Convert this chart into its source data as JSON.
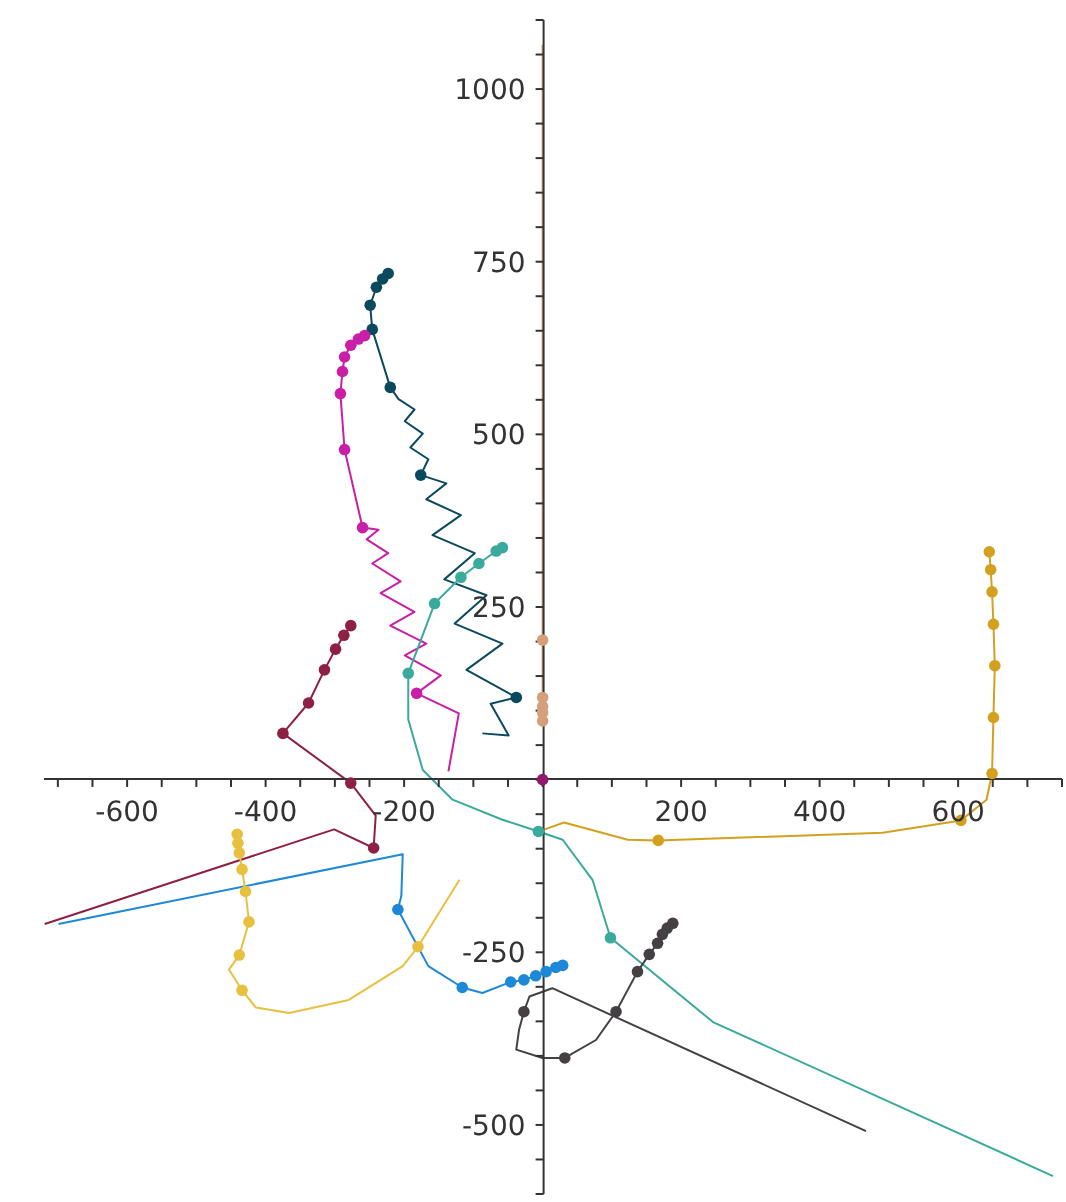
{
  "chart_data": {
    "type": "line",
    "xlim": [
      -720,
      750
    ],
    "ylim": [
      -600,
      1100
    ],
    "xticks": [
      {
        "value": -700,
        "label": null
      },
      {
        "value": -650,
        "label": null
      },
      -600,
      {
        "value": -550,
        "label": null
      },
      {
        "value": -500,
        "label": null
      },
      {
        "value": -450,
        "label": null
      },
      -400,
      {
        "value": -350,
        "label": null
      },
      {
        "value": -300,
        "label": null
      },
      {
        "value": -250,
        "label": null
      },
      -200,
      {
        "value": -150,
        "label": null
      },
      {
        "value": -100,
        "label": null
      },
      {
        "value": -50,
        "label": null
      },
      {
        "value": 0,
        "label": null
      },
      {
        "value": 50,
        "label": null
      },
      {
        "value": 100,
        "label": null
      },
      {
        "value": 150,
        "label": null
      },
      200,
      {
        "value": 250,
        "label": null
      },
      {
        "value": 300,
        "label": null
      },
      {
        "value": 350,
        "label": null
      },
      400,
      {
        "value": 450,
        "label": null
      },
      {
        "value": 500,
        "label": null
      },
      {
        "value": 550,
        "label": null
      },
      600,
      {
        "value": 650,
        "label": null
      },
      {
        "value": 700,
        "label": null
      },
      {
        "value": 750,
        "label": null
      }
    ],
    "yticks": [
      {
        "value": -600,
        "label": null
      },
      {
        "value": -550,
        "label": null
      },
      -500,
      {
        "value": -450,
        "label": null
      },
      {
        "value": -400,
        "label": null
      },
      {
        "value": -350,
        "label": null
      },
      {
        "value": -300,
        "label": null
      },
      -250,
      {
        "value": -200,
        "label": null
      },
      {
        "value": -150,
        "label": null
      },
      {
        "value": -100,
        "label": null
      },
      {
        "value": -50,
        "label": null
      },
      {
        "value": 0,
        "label": null
      },
      {
        "value": 50,
        "label": null
      },
      {
        "value": 100,
        "label": null
      },
      {
        "value": 150,
        "label": null
      },
      {
        "value": 200,
        "label": null
      },
      250,
      {
        "value": 300,
        "label": null
      },
      {
        "value": 350,
        "label": null
      },
      {
        "value": 400,
        "label": null
      },
      {
        "value": 450,
        "label": null
      },
      500,
      {
        "value": 550,
        "label": null
      },
      {
        "value": 600,
        "label": null
      },
      {
        "value": 650,
        "label": null
      },
      {
        "value": 700,
        "label": null
      },
      750,
      {
        "value": 800,
        "label": null
      },
      {
        "value": 850,
        "label": null
      },
      {
        "value": 900,
        "label": null
      },
      {
        "value": 950,
        "label": null
      },
      1000,
      {
        "value": 1050,
        "label": null
      },
      {
        "value": 1100,
        "label": null
      }
    ],
    "grid": false,
    "series": [
      {
        "type": "line",
        "color": "#0b4a5e",
        "x": [
          -87,
          -49,
          -75,
          -38,
          -110,
          -58,
          -127,
          -81,
          -142,
          -98,
          -159,
          -118,
          -168,
          -139,
          -176,
          -165,
          -191,
          -173,
          -199,
          -185,
          -208,
          -220,
          -246,
          -249,
          -240,
          -231,
          -223
        ],
        "values": [
          67,
          64,
          110,
          119,
          159,
          197,
          226,
          267,
          290,
          328,
          354,
          383,
          406,
          429,
          441,
          464,
          481,
          501,
          519,
          536,
          551,
          568,
          652,
          687,
          713,
          725,
          733
        ]
      },
      {
        "type": "scatter",
        "marker": "circle",
        "color": "#0b4a5e",
        "x": [
          -38,
          -176,
          -220,
          -246,
          -249,
          -240,
          -231,
          -223
        ],
        "values": [
          119,
          441,
          568,
          652,
          687,
          713,
          725,
          733
        ]
      },
      {
        "type": "line",
        "color": "#c81ea8",
        "x": [
          -136,
          -121,
          -182,
          -147,
          -199,
          -168,
          -220,
          -185,
          -234,
          -205,
          -246,
          -223,
          -254,
          -237,
          -260,
          -286,
          -292,
          -289,
          -286,
          -277,
          -266,
          -257
        ],
        "values": [
          12,
          96,
          125,
          151,
          180,
          197,
          223,
          243,
          270,
          287,
          313,
          328,
          348,
          362,
          365,
          478,
          559,
          591,
          612,
          629,
          638,
          643
        ]
      },
      {
        "type": "scatter",
        "marker": "circle",
        "color": "#c81ea8",
        "x": [
          -182,
          -260,
          -286,
          -292,
          -289,
          -286,
          -277,
          -266,
          -257
        ],
        "values": [
          125,
          365,
          478,
          559,
          591,
          612,
          629,
          638,
          643
        ]
      },
      {
        "type": "line",
        "color": "#3aaa9c",
        "x": [
          -58,
          -67,
          -92,
          -118,
          -156,
          -194,
          -194,
          -173,
          -130,
          -58,
          -6,
          29,
          72,
          98,
          246,
          737
        ],
        "values": [
          336,
          331,
          313,
          293,
          255,
          154,
          87,
          14,
          -29,
          -58,
          -75,
          -87,
          -145,
          -229,
          -351,
          -574
        ]
      },
      {
        "type": "scatter",
        "marker": "circle",
        "color": "#3aaa9c",
        "x": [
          -58,
          -67,
          -92,
          -118,
          -156,
          -194,
          -6,
          98
        ],
        "values": [
          336,
          331,
          313,
          293,
          255,
          154,
          -75,
          -229
        ]
      },
      {
        "type": "line",
        "color": "#8e2044",
        "x": [
          -277,
          -287,
          -299,
          -315,
          -338,
          -375,
          -277,
          -241,
          -244,
          -301,
          -719
        ],
        "values": [
          223,
          209,
          189,
          159,
          111,
          67,
          -5,
          -52,
          -99,
          -72,
          -209
        ]
      },
      {
        "type": "scatter",
        "marker": "circle",
        "color": "#8e2044",
        "x": [
          -277,
          -287,
          -299,
          -315,
          -338,
          -375,
          -277,
          -244
        ],
        "values": [
          223,
          209,
          189,
          159,
          111,
          67,
          -5,
          -99
        ]
      },
      {
        "type": "line",
        "color": "#1e88d8",
        "x": [
          -699,
          -202,
          -204,
          -209,
          -165,
          -116,
          -87,
          -46,
          -27,
          -10,
          5,
          19,
          29
        ],
        "values": [
          -209,
          -108,
          -168,
          -188,
          -270,
          -301,
          -309,
          -293,
          -290,
          -284,
          -278,
          -272,
          -269
        ]
      },
      {
        "type": "scatter",
        "marker": "circle",
        "color": "#1e88d8",
        "x": [
          -209,
          -116,
          -46,
          -27,
          -10,
          5,
          19,
          29
        ],
        "values": [
          -188,
          -301,
          -293,
          -290,
          -284,
          -278,
          -272,
          -269
        ]
      },
      {
        "type": "line",
        "color": "#e8c040",
        "x": [
          -441,
          -440,
          -438,
          -434,
          -429,
          -424,
          -438,
          -453,
          -434,
          -414,
          -366,
          -280,
          -202,
          -180,
          -120
        ],
        "values": [
          -79,
          -92,
          -106,
          -130,
          -162,
          -206,
          -254,
          -275,
          -305,
          -330,
          -338,
          -319,
          -270,
          -242,
          -145
        ]
      },
      {
        "type": "scatter",
        "marker": "circle",
        "color": "#e8c040",
        "x": [
          -441,
          -440,
          -438,
          -434,
          -429,
          -424,
          -438,
          -434,
          -180
        ],
        "values": [
          -79,
          -92,
          -106,
          -130,
          -162,
          -206,
          -254,
          -305,
          -242
        ]
      },
      {
        "type": "line",
        "color": "#d4a020",
        "x": [
          645,
          647,
          649,
          651,
          653,
          651,
          649,
          641,
          604,
          491,
          167,
          123,
          31,
          3
        ],
        "values": [
          330,
          304,
          272,
          225,
          165,
          90,
          9,
          -29,
          -59,
          -77,
          -88,
          -87,
          -62,
          -72
        ]
      },
      {
        "type": "scatter",
        "marker": "circle",
        "color": "#d4a020",
        "x": [
          645,
          647,
          649,
          651,
          653,
          651,
          649,
          604,
          167
        ],
        "values": [
          330,
          304,
          272,
          225,
          165,
          90,
          9,
          -59,
          -88
        ]
      },
      {
        "type": "line",
        "color": "#444044",
        "x": [
          188,
          180,
          173,
          166,
          154,
          137,
          106,
          77,
          32,
          0,
          -38,
          -34,
          -27,
          -19,
          14,
          467
        ],
        "values": [
          -208,
          -215,
          -224,
          -237,
          -253,
          -278,
          -336,
          -377,
          -403,
          -403,
          -391,
          -362,
          -336,
          -314,
          -302,
          -509
        ]
      },
      {
        "type": "scatter",
        "marker": "circle",
        "color": "#444044",
        "x": [
          188,
          180,
          173,
          166,
          154,
          137,
          106,
          32,
          -27
        ],
        "values": [
          -208,
          -215,
          -224,
          -237,
          -253,
          -278,
          -336,
          -403,
          -336
        ]
      },
      {
        "type": "line",
        "color": "#d4a07c",
        "x": [
          0,
          0,
          0,
          0,
          0,
          0,
          0
        ],
        "values": [
          80,
          85,
          97,
          106,
          119,
          202,
          1064
        ]
      },
      {
        "type": "scatter",
        "marker": "circle",
        "color": "#d4a07c",
        "x": [
          0,
          0,
          0,
          0,
          0
        ],
        "values": [
          85,
          97,
          106,
          119,
          202
        ]
      },
      {
        "type": "scatter",
        "marker": "circle",
        "color": "#8e1a6e",
        "x": [
          0
        ],
        "values": [
          0
        ]
      }
    ]
  }
}
